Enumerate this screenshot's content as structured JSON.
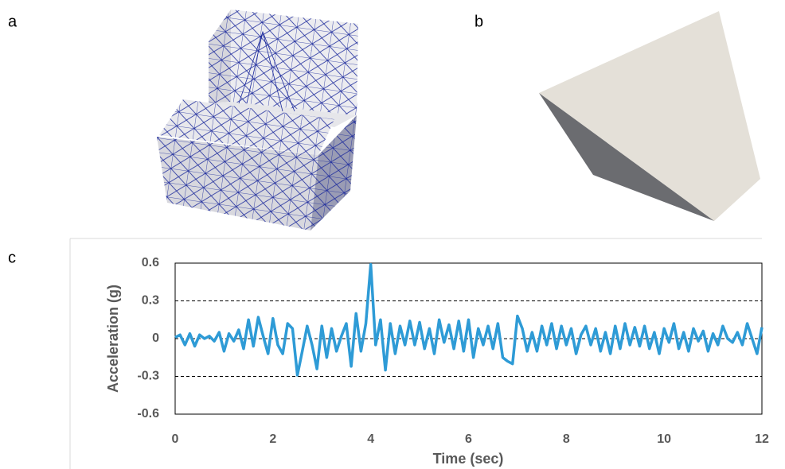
{
  "panel_labels": [
    "a",
    "b",
    "c"
  ],
  "chart_data": {
    "type": "line",
    "xlabel": "Time (sec)",
    "ylabel": "Acceleration (g)",
    "x": [
      0,
      0.1,
      0.2,
      0.3,
      0.4,
      0.5,
      0.6,
      0.7,
      0.8,
      0.9,
      1,
      1.1,
      1.2,
      1.3,
      1.4,
      1.5,
      1.6,
      1.7,
      1.8,
      1.9,
      2,
      2.1,
      2.2,
      2.3,
      2.4,
      2.5,
      2.6,
      2.7,
      2.8,
      2.9,
      3,
      3.1,
      3.2,
      3.3,
      3.4,
      3.5,
      3.6,
      3.7,
      3.8,
      3.9,
      4,
      4.1,
      4.2,
      4.3,
      4.4,
      4.5,
      4.6,
      4.7,
      4.8,
      4.9,
      5,
      5.1,
      5.2,
      5.3,
      5.4,
      5.5,
      5.6,
      5.7,
      5.8,
      5.9,
      6,
      6.1,
      6.2,
      6.3,
      6.4,
      6.5,
      6.6,
      6.7,
      6.8,
      6.9,
      7,
      7.1,
      7.2,
      7.3,
      7.4,
      7.5,
      7.6,
      7.7,
      7.8,
      7.9,
      8,
      8.1,
      8.2,
      8.3,
      8.4,
      8.5,
      8.6,
      8.7,
      8.8,
      8.9,
      9,
      9.1,
      9.2,
      9.3,
      9.4,
      9.5,
      9.6,
      9.7,
      9.8,
      9.9,
      10,
      10.1,
      10.2,
      10.3,
      10.4,
      10.5,
      10.6,
      10.7,
      10.8,
      10.9,
      11,
      11.1,
      11.2,
      11.3,
      11.4,
      11.5,
      11.6,
      11.7,
      11.8,
      11.9,
      12
    ],
    "values": [
      0.01,
      0.03,
      -0.05,
      0.04,
      -0.06,
      0.03,
      0,
      0.02,
      -0.02,
      0.05,
      -0.1,
      0.04,
      -0.02,
      0.07,
      -0.08,
      0.15,
      -0.06,
      0.17,
      0.02,
      -0.12,
      0.16,
      -0.05,
      -0.12,
      0.12,
      0.08,
      -0.29,
      -0.1,
      0.1,
      -0.05,
      -0.24,
      0.1,
      -0.15,
      0.08,
      -0.1,
      0.02,
      0.12,
      -0.22,
      0.2,
      -0.1,
      0.12,
      0.59,
      -0.05,
      0.15,
      -0.25,
      0.12,
      -0.12,
      0.1,
      -0.05,
      0.14,
      -0.05,
      0.13,
      -0.08,
      0.08,
      -0.12,
      0.15,
      -0.03,
      0.11,
      -0.08,
      0.14,
      -0.1,
      0.15,
      -0.15,
      0.08,
      -0.05,
      0.1,
      -0.08,
      0.12,
      -0.15,
      -0.18,
      -0.2,
      0.18,
      0.08,
      -0.1,
      0.05,
      -0.1,
      0.1,
      -0.05,
      0.12,
      -0.08,
      0.1,
      -0.05,
      0.08,
      -0.12,
      0.03,
      0.1,
      -0.05,
      0.08,
      -0.1,
      0.05,
      -0.12,
      0.1,
      -0.08,
      0.12,
      -0.05,
      0.09,
      -0.06,
      0.1,
      -0.08,
      0.05,
      -0.12,
      0.08,
      -0.03,
      0.12,
      -0.08,
      0.05,
      -0.1,
      0.08,
      -0.02,
      0.06,
      -0.1,
      0.04,
      -0.05,
      0.1,
      0,
      -0.03,
      0.05,
      -0.05,
      0.12,
      0,
      -0.12,
      0.09
    ],
    "color": "#2e9bd6",
    "xlim": [
      0,
      12
    ],
    "xticks": [
      0,
      2,
      4,
      6,
      8,
      10,
      12
    ],
    "ylim": [
      -0.6,
      0.6
    ],
    "yticks": [
      -0.6,
      -0.3,
      0,
      0.3,
      0.6
    ],
    "grid": true
  }
}
